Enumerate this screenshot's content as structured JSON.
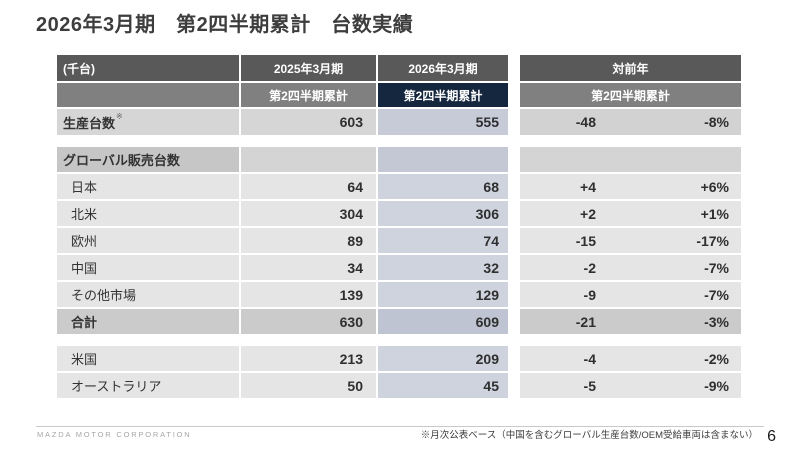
{
  "title": "2026年3月期　第2四半期累計　台数実績",
  "colors": {
    "accent_navy": "#15273f",
    "header_dark_gray": "#595959",
    "header_gray": "#808080",
    "highlight_column": "#ced3de"
  },
  "table": {
    "header": {
      "unit": "(千台)",
      "fy2025": "2025年3月期",
      "fy2026": "2026年3月期",
      "yoy": "対前年",
      "period": "第2四半期累計"
    },
    "rows": [
      {
        "label": "生産台数",
        "sup": "※",
        "v2025": "603",
        "v2026": "555",
        "diff": "-48",
        "pct": "-8%"
      },
      {
        "label": "グローバル販売台数",
        "v2025": "",
        "v2026": "",
        "diff": "",
        "pct": ""
      },
      {
        "label": "日本",
        "v2025": "64",
        "v2026": "68",
        "diff": "+4",
        "pct": "+6%"
      },
      {
        "label": "北米",
        "v2025": "304",
        "v2026": "306",
        "diff": "+2",
        "pct": "+1%"
      },
      {
        "label": "欧州",
        "v2025": "89",
        "v2026": "74",
        "diff": "-15",
        "pct": "-17%"
      },
      {
        "label": "中国",
        "v2025": "34",
        "v2026": "32",
        "diff": "-2",
        "pct": "-7%"
      },
      {
        "label": "その他市場",
        "v2025": "139",
        "v2026": "129",
        "diff": "-9",
        "pct": "-7%"
      },
      {
        "label": "合計",
        "v2025": "630",
        "v2026": "609",
        "diff": "-21",
        "pct": "-3%"
      },
      {
        "label": "米国",
        "v2025": "213",
        "v2026": "209",
        "diff": "-4",
        "pct": "-2%"
      },
      {
        "label": "オーストラリア",
        "v2025": "50",
        "v2026": "45",
        "diff": "-5",
        "pct": "-9%"
      }
    ]
  },
  "footer": {
    "company": "MAZDA MOTOR CORPORATION",
    "footnote": "※月次公表ベース（中国を含むグローバル生産台数/OEM受給車両は含まない）",
    "page": "6"
  }
}
